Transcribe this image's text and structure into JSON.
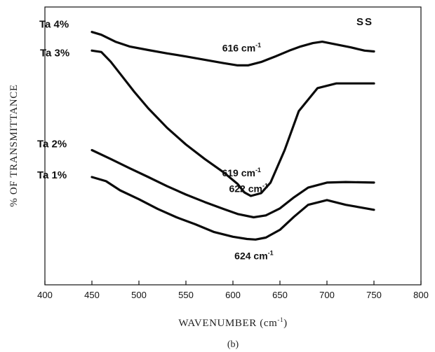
{
  "chart_data": {
    "type": "line",
    "xlabel": "WAVENUMBER (cm",
    "xlabel_sup": "-1",
    "xlabel_close": ")",
    "ylabel": "% OF TRANSMITTANCE",
    "caption": "(b)",
    "corner_label": "SS",
    "xlim": [
      400,
      800
    ],
    "xticks": [
      400,
      450,
      500,
      550,
      600,
      650,
      700,
      750,
      800
    ],
    "grid": false,
    "y_units": "relative transmittance (no y tick labels)",
    "ylim": [
      0,
      100
    ],
    "series": [
      {
        "name": "Ta 4%",
        "peak_label": "616 cm",
        "peak_sup": "-1",
        "x": [
          450,
          460,
          475,
          490,
          510,
          530,
          550,
          570,
          590,
          605,
          616,
          630,
          645,
          660,
          672,
          685,
          695,
          710,
          725,
          740,
          750
        ],
        "y": [
          91.0,
          90.0,
          87.5,
          85.8,
          84.5,
          83.3,
          82.2,
          81.0,
          79.8,
          79.0,
          79.0,
          80.2,
          82.2,
          84.3,
          85.8,
          87.0,
          87.5,
          86.5,
          85.5,
          84.3,
          84.0
        ]
      },
      {
        "name": "Ta 3%",
        "peak_label": "619 cm",
        "peak_sup": "-1",
        "x": [
          450,
          460,
          470,
          480,
          495,
          510,
          530,
          550,
          570,
          590,
          605,
          612,
          619,
          630,
          640,
          655,
          670,
          690,
          710,
          730,
          750
        ],
        "y": [
          84.3,
          83.8,
          80.3,
          76.0,
          69.5,
          63.5,
          56.5,
          50.5,
          45.3,
          40.5,
          36.3,
          33.3,
          32.0,
          33.0,
          36.8,
          48.5,
          62.5,
          70.8,
          72.5,
          72.5,
          72.5
        ]
      },
      {
        "name": "Ta 2%",
        "peak_label": "622 cm",
        "peak_sup": "-1",
        "x": [
          450,
          470,
          490,
          510,
          530,
          550,
          570,
          590,
          605,
          622,
          635,
          650,
          665,
          680,
          700,
          720,
          750
        ],
        "y": [
          48.5,
          45.3,
          42.0,
          38.8,
          35.5,
          32.5,
          29.8,
          27.3,
          25.5,
          24.3,
          25.0,
          27.5,
          31.5,
          35.0,
          36.8,
          37.0,
          36.8
        ]
      },
      {
        "name": "Ta 1%",
        "peak_label": "624 cm",
        "peak_sup": "-1",
        "x": [
          450,
          465,
          480,
          500,
          520,
          540,
          560,
          580,
          600,
          615,
          624,
          635,
          650,
          665,
          680,
          700,
          720,
          750
        ],
        "y": [
          38.8,
          37.3,
          34.0,
          30.8,
          27.3,
          24.3,
          21.8,
          19.0,
          17.3,
          16.5,
          16.3,
          17.0,
          19.8,
          24.5,
          28.8,
          30.5,
          28.8,
          27.0
        ]
      }
    ]
  }
}
